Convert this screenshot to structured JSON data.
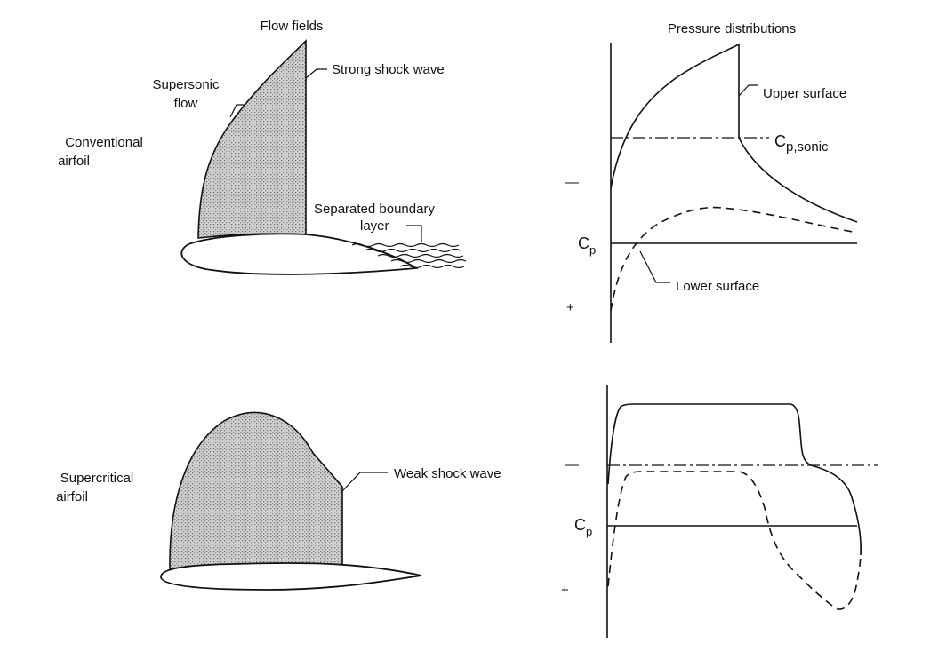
{
  "headers": {
    "flow_fields": "Flow fields",
    "pressure_distributions": "Pressure distributions"
  },
  "rows": {
    "conventional": {
      "line1": "Conventional",
      "line2": "airfoil"
    },
    "supercritical": {
      "line1": "Supercritical",
      "line2": "airfoil"
    }
  },
  "annotations": {
    "supersonic_flow": {
      "line1": "Supersonic",
      "line2": "flow"
    },
    "strong_shock": "Strong shock wave",
    "separated_layer": {
      "line1": "Separated boundary",
      "line2": "layer"
    },
    "weak_shock": "Weak shock wave",
    "upper_surface": "Upper surface",
    "lower_surface": "Lower surface",
    "cp_sonic_main": "C",
    "cp_sonic_sub": "p,sonic"
  },
  "axes": {
    "cp_main": "C",
    "cp_sub": "p",
    "minus": "—",
    "plus": "+"
  },
  "colors": {
    "ink": "#111111",
    "shading": "#b0b0b0",
    "background": "#ffffff"
  }
}
